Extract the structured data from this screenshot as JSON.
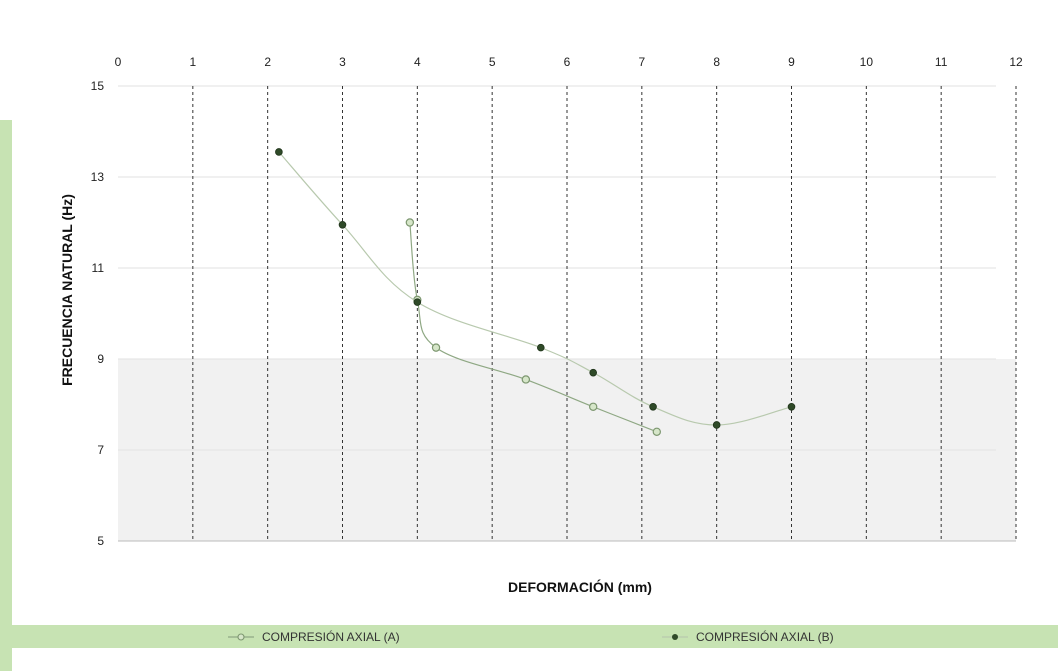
{
  "chart_data": {
    "type": "line",
    "title": "",
    "xlabel": "DEFORMACIÓN (mm)",
    "ylabel": "FRECUENCIA NATURAL (Hz)",
    "xlim": [
      0,
      12
    ],
    "ylim": [
      5,
      15
    ],
    "x_ticks": [
      "0",
      "1",
      "2",
      "3",
      "4",
      "5",
      "6",
      "7",
      "8",
      "9",
      "10",
      "11",
      "12"
    ],
    "y_ticks": [
      "5",
      "7",
      "9",
      "11",
      "13",
      "15"
    ],
    "x_axis_position": "top",
    "grid": {
      "vertical": "dashed",
      "horizontal": "solid-light"
    },
    "legend_position": "bottom",
    "series": [
      {
        "name": "COMPRESIÓN AXIAL (A)",
        "marker": "open-circle",
        "color": "#a8c49a",
        "x": [
          3.9,
          4.0,
          4.25,
          5.45,
          6.35,
          7.2
        ],
        "y": [
          12.0,
          10.3,
          9.25,
          8.55,
          7.95,
          7.4
        ]
      },
      {
        "name": "COMPRESIÓN AXIAL (B)",
        "marker": "filled-circle",
        "color": "#2f4a28",
        "x": [
          2.15,
          3.0,
          4.0,
          5.65,
          6.35,
          7.15,
          8.0,
          9.0
        ],
        "y": [
          13.55,
          11.95,
          10.25,
          9.25,
          8.7,
          7.95,
          7.55,
          7.95
        ]
      }
    ]
  },
  "colors": {
    "accent_green": "#c7e3b3",
    "series_a_line": "#a8c49a",
    "series_b_marker": "#2f4a28"
  }
}
